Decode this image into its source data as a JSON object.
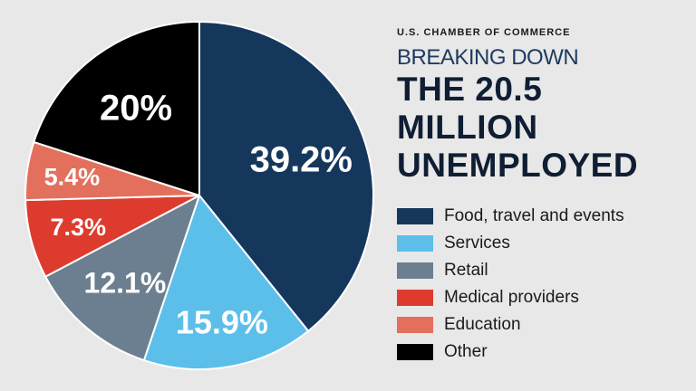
{
  "header": {
    "org": "U.S. CHAMBER OF COMMERCE",
    "subtitle": "BREAKING DOWN",
    "title_lines": [
      "THE 20.5",
      "MILLION",
      "UNEMPLOYED"
    ]
  },
  "chart_data": {
    "type": "pie",
    "title": "BREAKING DOWN THE 20.5 MILLION UNEMPLOYED",
    "legend_placement": "right",
    "slices": [
      {
        "label": "Food, travel and events",
        "value": 39.2,
        "display": "39.2%",
        "color": "#15375c"
      },
      {
        "label": "Services",
        "value": 15.9,
        "display": "15.9%",
        "color": "#5bbfe9"
      },
      {
        "label": "Retail",
        "value": 12.1,
        "display": "12.1%",
        "color": "#6c7f90"
      },
      {
        "label": "Medical providers",
        "value": 7.3,
        "display": "7.3%",
        "color": "#de3b2f"
      },
      {
        "label": "Education",
        "value": 5.4,
        "display": "5.4%",
        "color": "#e3705d"
      },
      {
        "label": "Other",
        "value": 20,
        "display": "20%",
        "color": "#000000"
      }
    ]
  }
}
